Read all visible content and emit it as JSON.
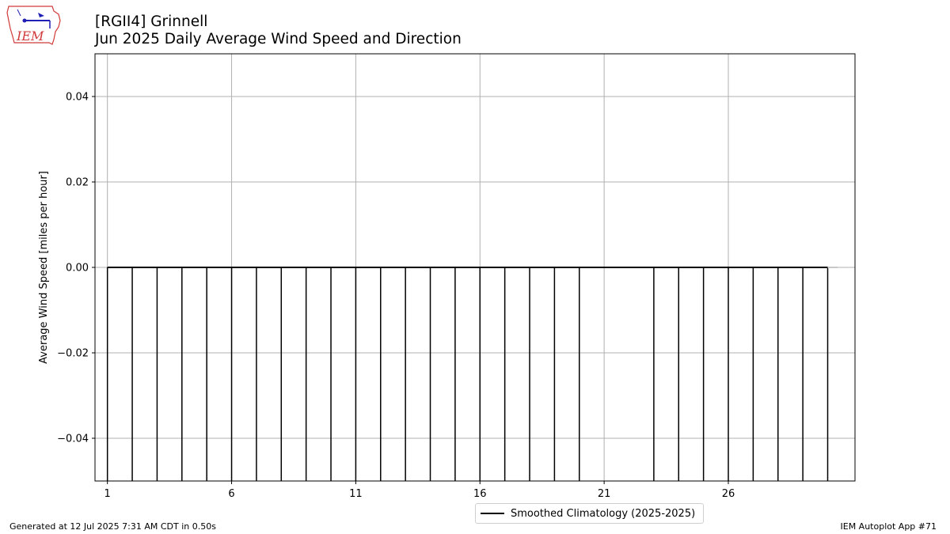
{
  "header": {
    "line1": "[RGII4] Grinnell",
    "line2": "Jun 2025 Daily Average Wind Speed and Direction"
  },
  "logo": {
    "text": "IEM",
    "icon": "iem-logo-iowa-map"
  },
  "footer": {
    "generated": "Generated at 12 Jul 2025 7:31 AM CDT in 0.50s",
    "app": "IEM Autoplot App #71"
  },
  "chart_data": {
    "type": "bar",
    "title": "[RGII4] Grinnell\nJun 2025 Daily Average Wind Speed and Direction",
    "ylabel": "Average Wind Speed [miles per hour]",
    "xlabel": "",
    "ylim": [
      -0.05,
      0.05
    ],
    "xlim": [
      0.5,
      31.1
    ],
    "yticks": [
      -0.04,
      -0.02,
      0.0,
      0.02,
      0.04
    ],
    "ytick_labels": [
      "−0.04",
      "−0.02",
      "0.00",
      "0.02",
      "0.04"
    ],
    "xticks": [
      1,
      6,
      11,
      16,
      21,
      26
    ],
    "xtick_labels": [
      "1",
      "6",
      "11",
      "16",
      "21",
      "26"
    ],
    "grid": true,
    "days": [
      1,
      2,
      3,
      4,
      5,
      6,
      7,
      8,
      9,
      10,
      11,
      12,
      13,
      14,
      15,
      16,
      17,
      18,
      19,
      20,
      23,
      24,
      25,
      26,
      27,
      28,
      29,
      30
    ],
    "values": [
      0,
      0,
      0,
      0,
      0,
      0,
      0,
      0,
      0,
      0,
      0,
      0,
      0,
      0,
      0,
      0,
      0,
      0,
      0,
      0,
      0,
      0,
      0,
      0,
      0,
      0,
      0,
      0
    ],
    "series": [
      {
        "name": "Smoothed Climatology (2025-2025)",
        "x": [
          1,
          30
        ],
        "y": [
          0,
          0
        ],
        "color": "#000000"
      }
    ],
    "legend_location": "bottom-center"
  }
}
